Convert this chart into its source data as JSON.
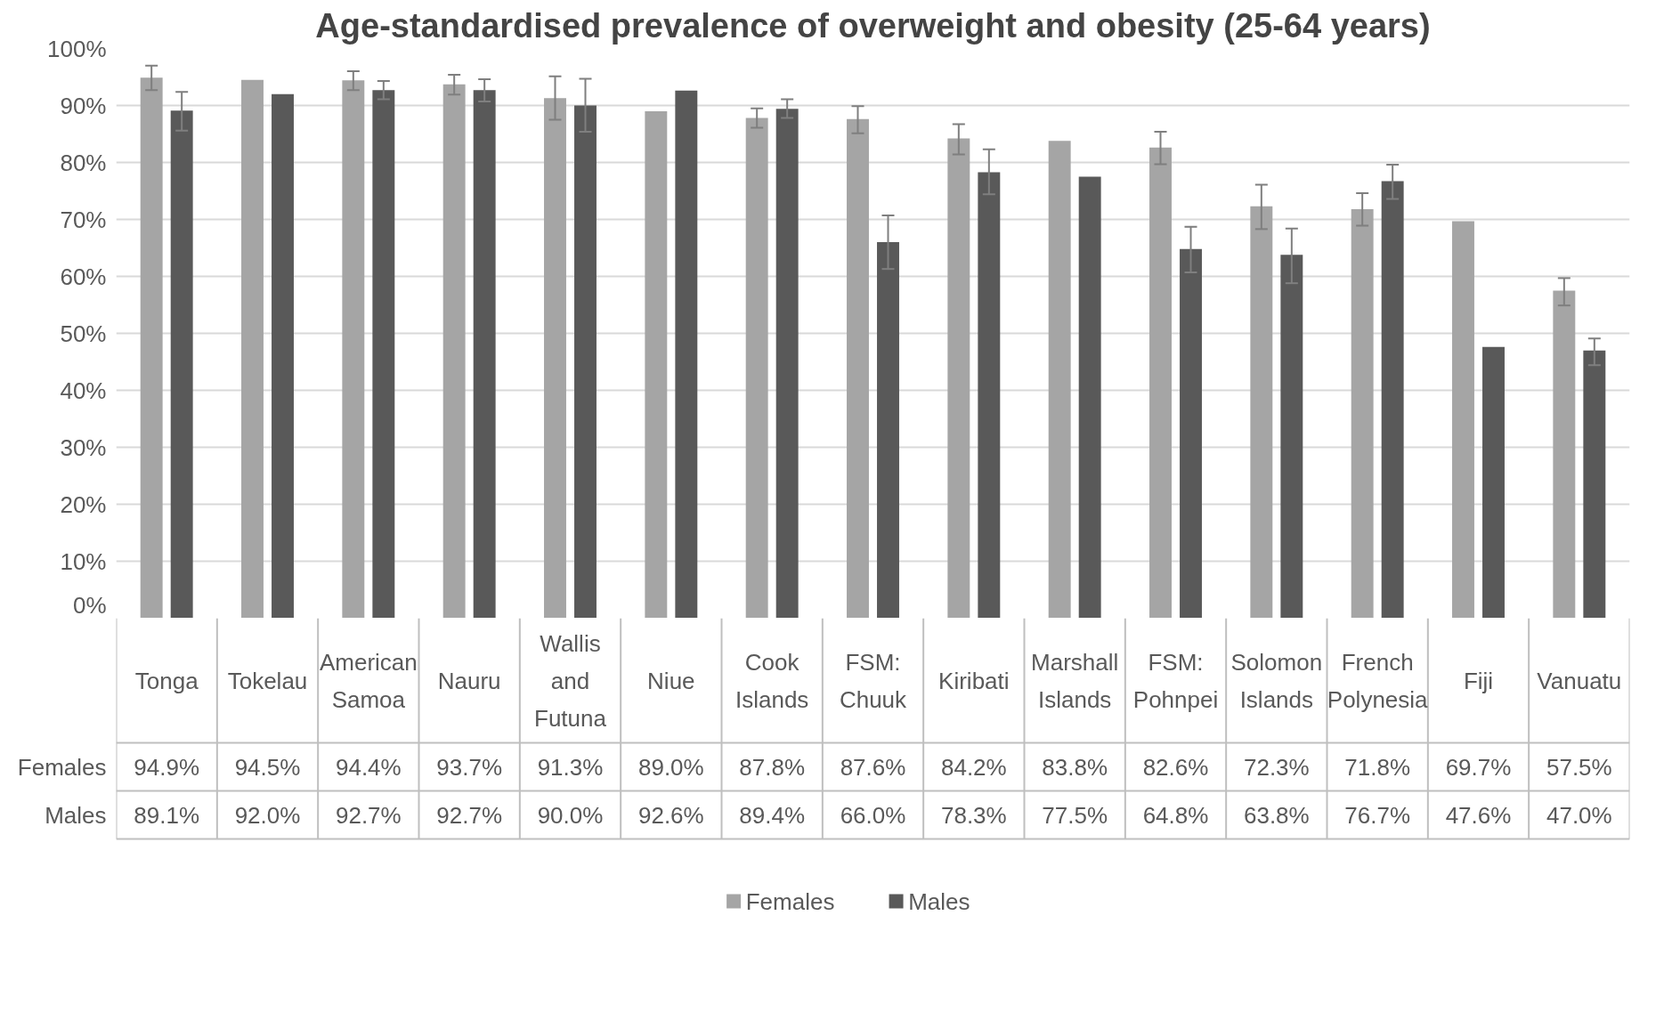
{
  "chart_data": {
    "type": "bar",
    "title": "Age-standardised prevalence of overweight and obesity (25-64 years)",
    "categories": [
      "Tonga",
      "Tokelau",
      "American Samoa",
      "Nauru",
      "Wallis and Futuna",
      "Niue",
      "Cook Islands",
      "FSM: Chuuk",
      "Kiribati",
      "Marshall Islands",
      "FSM: Pohnpei",
      "Solomon Islands",
      "French Polynesia",
      "Fiji",
      "Vanuatu"
    ],
    "series": [
      {
        "name": "Females",
        "color": "#a5a5a5",
        "values": [
          94.9,
          94.5,
          94.4,
          93.7,
          91.3,
          89.0,
          87.8,
          87.6,
          84.2,
          83.8,
          82.6,
          72.3,
          71.8,
          69.7,
          57.5
        ],
        "value_labels": [
          "94.9%",
          "94.5%",
          "94.4%",
          "93.7%",
          "91.3%",
          "89.0%",
          "87.8%",
          "87.6%",
          "84.2%",
          "83.8%",
          "82.6%",
          "72.3%",
          "71.8%",
          "69.7%",
          "57.5%"
        ],
        "errors": [
          [
            92.7,
            97.0
          ],
          null,
          [
            92.7,
            96.0
          ],
          [
            91.9,
            95.4
          ],
          [
            87.5,
            95.1
          ],
          null,
          [
            86.1,
            89.5
          ],
          [
            85.1,
            89.9
          ],
          [
            81.4,
            86.7
          ],
          null,
          [
            79.7,
            85.4
          ],
          [
            68.3,
            76.1
          ],
          [
            68.9,
            74.6
          ],
          null,
          [
            54.9,
            59.7
          ]
        ]
      },
      {
        "name": "Males",
        "color": "#595959",
        "values": [
          89.1,
          92.0,
          92.7,
          92.7,
          90.0,
          92.6,
          89.4,
          66.0,
          78.3,
          77.5,
          64.8,
          63.8,
          76.7,
          47.6,
          47.0
        ],
        "value_labels": [
          "89.1%",
          "92.0%",
          "92.7%",
          "92.7%",
          "90.0%",
          "92.6%",
          "89.4%",
          "66.0%",
          "78.3%",
          "77.5%",
          "64.8%",
          "63.8%",
          "76.7%",
          "47.6%",
          "47.0%"
        ],
        "errors": [
          [
            85.6,
            92.4
          ],
          null,
          [
            91.1,
            94.3
          ],
          [
            90.7,
            94.6
          ],
          [
            85.4,
            94.7
          ],
          null,
          [
            87.8,
            91.1
          ],
          [
            61.3,
            70.7
          ],
          [
            74.4,
            82.3
          ],
          null,
          [
            60.7,
            68.7
          ],
          [
            58.8,
            68.4
          ],
          [
            73.6,
            79.6
          ],
          null,
          [
            44.4,
            49.1
          ]
        ]
      }
    ],
    "ylim": [
      0,
      100
    ],
    "yticks": [
      {
        "value": 0,
        "label": "0%"
      },
      {
        "value": 10,
        "label": "10%"
      },
      {
        "value": 20,
        "label": "20%"
      },
      {
        "value": 30,
        "label": "30%"
      },
      {
        "value": 40,
        "label": "40%"
      },
      {
        "value": 50,
        "label": "50%"
      },
      {
        "value": 60,
        "label": "60%"
      },
      {
        "value": 70,
        "label": "70%"
      },
      {
        "value": 80,
        "label": "80%"
      },
      {
        "value": 90,
        "label": "90%"
      },
      {
        "value": 100,
        "label": "100%"
      }
    ],
    "grid": "y",
    "legend": "bottom"
  }
}
